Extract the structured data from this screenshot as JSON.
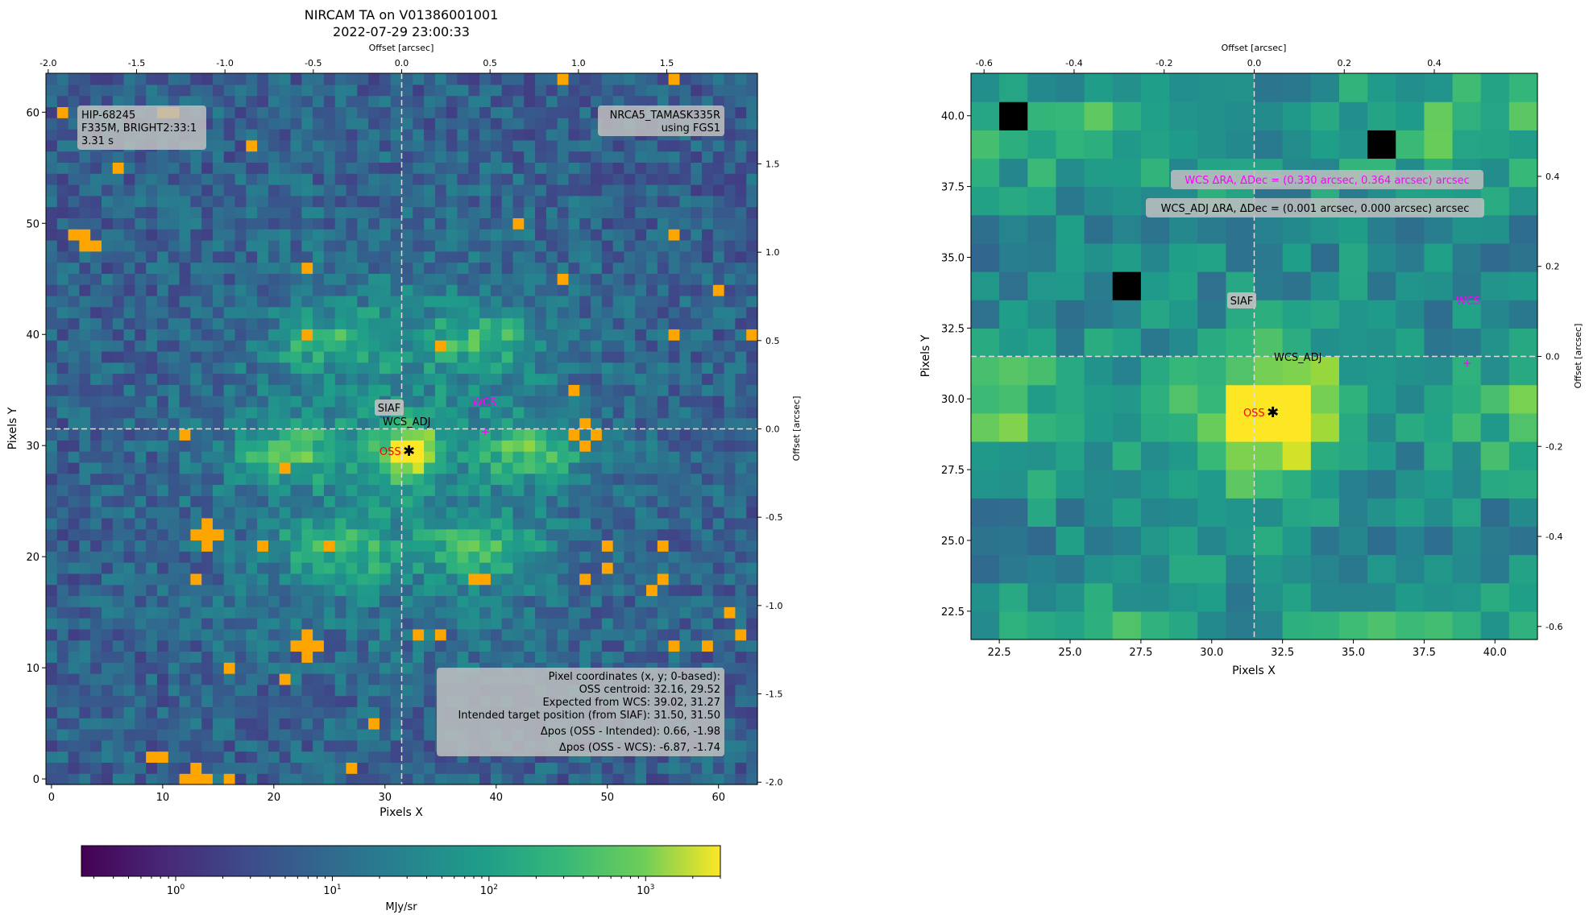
{
  "colors": {
    "viridis_low": "#440154",
    "viridis_high": "#fde725",
    "saturated_pixel": "#ffa500",
    "bad_pixel": "#000000",
    "oss_marker": "#ff0000",
    "wcs_marker": "#ff00ff",
    "crosshair": "#dddddd",
    "label_box": "#c0c0c0"
  },
  "chart_data": [
    {
      "type": "heatmap",
      "title": "NIRCAM TA on V01386001001",
      "subtitle": "2022-07-29 23:00:33",
      "xlabel": "Pixels X",
      "ylabel": "Pixels Y",
      "top_xlabel": "Offset [arcsec]",
      "right_ylabel": "Offset [arcsec]",
      "xlim": [
        -0.5,
        63.5
      ],
      "ylim": [
        -0.5,
        63.5
      ],
      "x_ticks": [
        0,
        10,
        20,
        30,
        40,
        50,
        60
      ],
      "y_ticks": [
        0,
        10,
        20,
        30,
        40,
        50,
        60
      ],
      "top_ticks": [
        "-2.0",
        "-1.5",
        "-1.0",
        "-0.5",
        "0.0",
        "0.5",
        "1.0",
        "1.5"
      ],
      "right_ticks": [
        "1.5",
        "1.0",
        "0.5",
        "0.0",
        "-0.5",
        "-1.0",
        "-1.5",
        "-2.0"
      ],
      "grid": false,
      "siaf_position": [
        31.5,
        31.5
      ],
      "oss_centroid": [
        32.16,
        29.52
      ],
      "wcs_position": [
        39.02,
        31.27
      ],
      "markers": {
        "siaf": "SIAF",
        "wcs_adj": "WCS_ADJ",
        "oss": "OSS",
        "wcs": "WCS"
      },
      "info_left": [
        "HIP-68245",
        "F335M, BRIGHT2:33:1",
        "3.31 s"
      ],
      "info_right": [
        "NRCA5_TAMASK335R",
        "using FGS1"
      ],
      "info_box": [
        "Pixel coordinates (x, y; 0-based):",
        "OSS centroid: 32.16, 29.52",
        "Expected from WCS: 39.02, 31.27",
        "Intended target position (from SIAF): 31.50, 31.50",
        "Δpos (OSS - Intended): 0.66, -1.98",
        "Δpos (OSS - WCS): -6.87, -1.74"
      ],
      "colorbar": {
        "label": "MJy/sr",
        "scale": "log",
        "ticks": [
          "10^0",
          "10^1",
          "10^2",
          "10^3"
        ],
        "range": [
          0.25,
          3000
        ]
      }
    },
    {
      "type": "heatmap",
      "xlabel": "Pixels X",
      "ylabel": "Pixels Y",
      "top_xlabel": "Offset [arcsec]",
      "right_ylabel": "Offset [arcsec]",
      "xlim": [
        21.5,
        41.5
      ],
      "ylim": [
        21.5,
        41.5
      ],
      "x_ticks": [
        "22.5",
        "25.0",
        "27.5",
        "30.0",
        "32.5",
        "35.0",
        "37.5",
        "40.0"
      ],
      "y_ticks": [
        "22.5",
        "25.0",
        "27.5",
        "30.0",
        "32.5",
        "35.0",
        "37.5",
        "40.0"
      ],
      "top_ticks": [
        "-0.6",
        "-0.4",
        "-0.2",
        "0.0",
        "0.2",
        "0.4"
      ],
      "right_ticks": [
        "0.4",
        "0.2",
        "0.0",
        "-0.2",
        "-0.4",
        "-0.6"
      ],
      "grid": false,
      "annotations": [
        "WCS ΔRA, ΔDec = (0.330 arcsec, 0.364 arcsec) arcsec",
        "WCS_ADJ ΔRA, ΔDec = (0.001 arcsec, 0.000 arcsec) arcsec"
      ]
    }
  ]
}
